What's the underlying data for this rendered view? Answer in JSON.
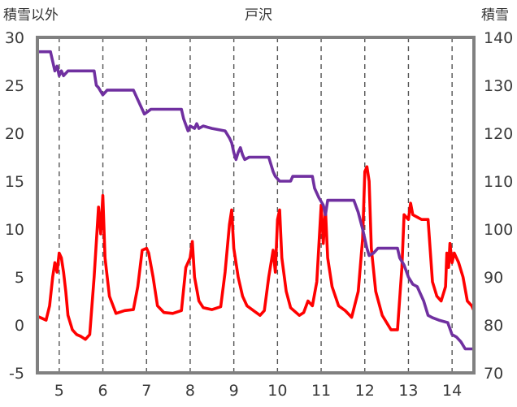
{
  "chart_data": {
    "type": "line",
    "title": "戸沢",
    "left_axis_label": "積雪以外",
    "right_axis_label": "積雪",
    "left_ylim": [
      -5,
      30
    ],
    "left_ticks": [
      "-5",
      "0",
      "5",
      "10",
      "15",
      "20",
      "25",
      "30"
    ],
    "right_ylim": [
      70,
      140
    ],
    "right_ticks": [
      "70",
      "80",
      "90",
      "100",
      "110",
      "120",
      "130",
      "140"
    ],
    "xlim": [
      4.5,
      14.5
    ],
    "x_ticks": [
      "5",
      "6",
      "7",
      "8",
      "9",
      "10",
      "11",
      "12",
      "13",
      "14"
    ],
    "grid": "vertical dashed at each day",
    "colors": {
      "temperature": "#ff0000",
      "snow_depth": "#7030a0",
      "frame": "#808080",
      "grid": "#555555"
    },
    "series": [
      {
        "axis": "left",
        "color": "#ff0000",
        "points": [
          [
            4.5,
            0.9
          ],
          [
            4.6,
            0.7
          ],
          [
            4.7,
            0.5
          ],
          [
            4.78,
            2.0
          ],
          [
            4.85,
            5.0
          ],
          [
            4.9,
            6.5
          ],
          [
            4.95,
            5.5
          ],
          [
            5.0,
            7.5
          ],
          [
            5.05,
            7.0
          ],
          [
            5.1,
            5.5
          ],
          [
            5.15,
            3.5
          ],
          [
            5.2,
            1.0
          ],
          [
            5.3,
            -0.5
          ],
          [
            5.4,
            -1.0
          ],
          [
            5.5,
            -1.2
          ],
          [
            5.6,
            -1.5
          ],
          [
            5.7,
            -1.0
          ],
          [
            5.8,
            5.0
          ],
          [
            5.9,
            12.3
          ],
          [
            5.95,
            9.5
          ],
          [
            6.0,
            13.5
          ],
          [
            6.05,
            7.0
          ],
          [
            6.15,
            3.0
          ],
          [
            6.3,
            1.2
          ],
          [
            6.5,
            1.5
          ],
          [
            6.7,
            1.6
          ],
          [
            6.8,
            4.0
          ],
          [
            6.9,
            7.8
          ],
          [
            7.0,
            8.0
          ],
          [
            7.05,
            7.5
          ],
          [
            7.15,
            5.0
          ],
          [
            7.25,
            2.0
          ],
          [
            7.4,
            1.3
          ],
          [
            7.6,
            1.2
          ],
          [
            7.8,
            1.5
          ],
          [
            7.9,
            6.0
          ],
          [
            8.0,
            7.0
          ],
          [
            8.05,
            8.7
          ],
          [
            8.1,
            5.0
          ],
          [
            8.2,
            2.5
          ],
          [
            8.3,
            1.8
          ],
          [
            8.5,
            1.6
          ],
          [
            8.7,
            1.9
          ],
          [
            8.8,
            5.5
          ],
          [
            8.9,
            10.5
          ],
          [
            8.95,
            12.0
          ],
          [
            9.0,
            8.0
          ],
          [
            9.1,
            5.0
          ],
          [
            9.2,
            3.0
          ],
          [
            9.3,
            2.0
          ],
          [
            9.45,
            1.5
          ],
          [
            9.6,
            1.0
          ],
          [
            9.7,
            1.5
          ],
          [
            9.8,
            5.0
          ],
          [
            9.9,
            7.8
          ],
          [
            9.95,
            5.5
          ],
          [
            10.0,
            11.0
          ],
          [
            10.05,
            12.0
          ],
          [
            10.1,
            7.0
          ],
          [
            10.2,
            3.5
          ],
          [
            10.3,
            1.8
          ],
          [
            10.5,
            1.0
          ],
          [
            10.6,
            1.3
          ],
          [
            10.7,
            2.5
          ],
          [
            10.8,
            2.0
          ],
          [
            10.9,
            4.5
          ],
          [
            11.0,
            12.5
          ],
          [
            11.05,
            8.5
          ],
          [
            11.1,
            12.0
          ],
          [
            11.15,
            7.0
          ],
          [
            11.25,
            4.0
          ],
          [
            11.4,
            2.0
          ],
          [
            11.55,
            1.5
          ],
          [
            11.7,
            0.8
          ],
          [
            11.85,
            3.5
          ],
          [
            11.95,
            9.0
          ],
          [
            12.0,
            16.0
          ],
          [
            12.05,
            16.5
          ],
          [
            12.1,
            15.0
          ],
          [
            12.15,
            8.0
          ],
          [
            12.25,
            3.5
          ],
          [
            12.4,
            1.0
          ],
          [
            12.6,
            -0.5
          ],
          [
            12.75,
            -0.5
          ],
          [
            12.85,
            6.0
          ],
          [
            12.9,
            11.5
          ],
          [
            13.0,
            11.0
          ],
          [
            13.05,
            12.7
          ],
          [
            13.1,
            11.5
          ],
          [
            13.3,
            11.0
          ],
          [
            13.45,
            11.0
          ],
          [
            13.55,
            4.5
          ],
          [
            13.65,
            3.0
          ],
          [
            13.75,
            2.5
          ],
          [
            13.85,
            4.0
          ],
          [
            13.88,
            7.5
          ],
          [
            13.92,
            6.0
          ],
          [
            13.95,
            8.5
          ],
          [
            14.0,
            6.5
          ],
          [
            14.05,
            7.5
          ],
          [
            14.15,
            6.5
          ],
          [
            14.25,
            5.0
          ],
          [
            14.35,
            2.5
          ],
          [
            14.45,
            2.0
          ],
          [
            14.5,
            1.5
          ]
        ]
      },
      {
        "axis": "right",
        "color": "#7030a0",
        "points": [
          [
            4.5,
            137.0
          ],
          [
            4.8,
            137.0
          ],
          [
            4.85,
            135.0
          ],
          [
            4.9,
            133.0
          ],
          [
            4.95,
            134.0
          ],
          [
            5.0,
            132.0
          ],
          [
            5.05,
            133.0
          ],
          [
            5.1,
            132.0
          ],
          [
            5.2,
            133.0
          ],
          [
            5.8,
            133.0
          ],
          [
            5.85,
            130.0
          ],
          [
            5.9,
            129.5
          ],
          [
            6.0,
            128.0
          ],
          [
            6.1,
            129.0
          ],
          [
            6.7,
            129.0
          ],
          [
            6.8,
            127.0
          ],
          [
            6.95,
            124.0
          ],
          [
            7.1,
            125.0
          ],
          [
            7.8,
            125.0
          ],
          [
            7.85,
            123.0
          ],
          [
            7.95,
            120.5
          ],
          [
            8.0,
            121.5
          ],
          [
            8.1,
            121.0
          ],
          [
            8.15,
            122.0
          ],
          [
            8.2,
            121.0
          ],
          [
            8.3,
            121.5
          ],
          [
            8.5,
            121.0
          ],
          [
            8.8,
            120.5
          ],
          [
            8.9,
            119.0
          ],
          [
            8.95,
            118.0
          ],
          [
            9.0,
            116.0
          ],
          [
            9.05,
            114.5
          ],
          [
            9.1,
            116.0
          ],
          [
            9.15,
            117.0
          ],
          [
            9.2,
            115.5
          ],
          [
            9.25,
            114.5
          ],
          [
            9.35,
            115.0
          ],
          [
            9.5,
            115.0
          ],
          [
            9.8,
            115.0
          ],
          [
            9.9,
            112.0
          ],
          [
            9.95,
            111.0
          ],
          [
            10.05,
            110.0
          ],
          [
            10.3,
            110.0
          ],
          [
            10.35,
            111.0
          ],
          [
            10.8,
            111.0
          ],
          [
            10.85,
            108.5
          ],
          [
            10.95,
            106.5
          ],
          [
            11.05,
            105.0
          ],
          [
            11.1,
            103.0
          ],
          [
            11.15,
            106.0
          ],
          [
            11.3,
            106.0
          ],
          [
            11.75,
            106.0
          ],
          [
            11.85,
            103.5
          ],
          [
            11.95,
            100.0
          ],
          [
            12.05,
            96.0
          ],
          [
            12.1,
            94.5
          ],
          [
            12.2,
            95.0
          ],
          [
            12.3,
            96.0
          ],
          [
            12.75,
            96.0
          ],
          [
            12.8,
            94.0
          ],
          [
            12.9,
            92.5
          ],
          [
            13.0,
            90.0
          ],
          [
            13.1,
            88.5
          ],
          [
            13.2,
            88.0
          ],
          [
            13.35,
            85.0
          ],
          [
            13.45,
            82.0
          ],
          [
            13.55,
            81.5
          ],
          [
            13.7,
            81.0
          ],
          [
            13.9,
            80.5
          ],
          [
            14.0,
            78.0
          ],
          [
            14.1,
            77.5
          ],
          [
            14.2,
            76.5
          ],
          [
            14.3,
            75.0
          ],
          [
            14.5,
            75.0
          ]
        ]
      }
    ]
  }
}
